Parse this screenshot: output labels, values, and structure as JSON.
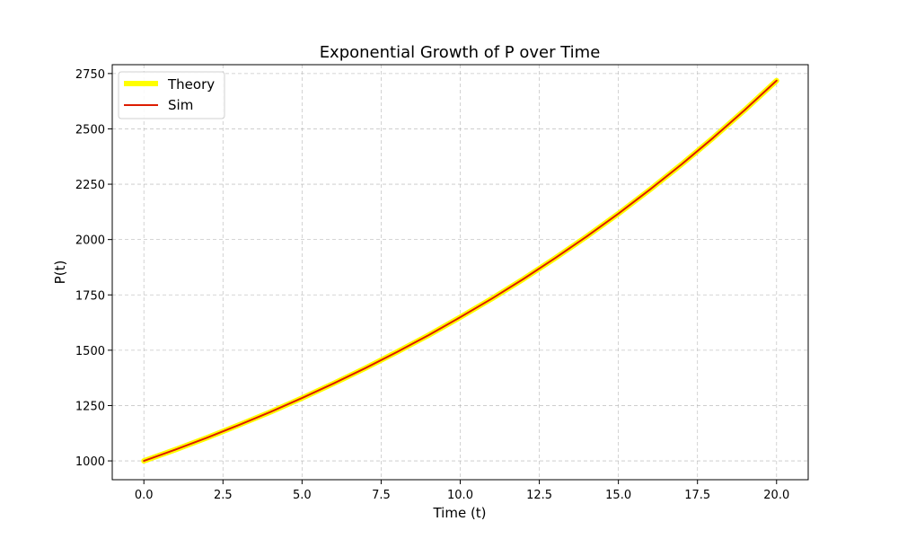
{
  "chart_data": {
    "type": "line",
    "title": "Exponential Growth of P over Time",
    "xlabel": "Time (t)",
    "ylabel": "P(t)",
    "xlim": [
      -1,
      21
    ],
    "ylim": [
      915,
      2790
    ],
    "xticks": [
      0.0,
      2.5,
      5.0,
      7.5,
      10.0,
      12.5,
      15.0,
      17.5,
      20.0
    ],
    "xtick_labels": [
      "0.0",
      "2.5",
      "5.0",
      "7.5",
      "10.0",
      "12.5",
      "15.0",
      "17.5",
      "20.0"
    ],
    "yticks": [
      1000,
      1250,
      1500,
      1750,
      2000,
      2250,
      2500,
      2750
    ],
    "ytick_labels": [
      "1000",
      "1250",
      "1500",
      "1750",
      "2000",
      "2250",
      "2500",
      "2750"
    ],
    "grid": true,
    "legend_position": "top-left",
    "x": [
      0,
      1,
      2,
      3,
      4,
      5,
      6,
      7,
      8,
      9,
      10,
      11,
      12,
      13,
      14,
      15,
      16,
      17,
      18,
      19,
      20
    ],
    "series": [
      {
        "name": "Theory",
        "color": "#ffff00",
        "values": [
          1000,
          1051,
          1105,
          1162,
          1221,
          1284,
          1350,
          1419,
          1492,
          1568,
          1649,
          1733,
          1822,
          1916,
          2014,
          2117,
          2226,
          2340,
          2460,
          2586,
          2718
        ]
      },
      {
        "name": "Sim",
        "color": "#dd1c00",
        "values": [
          1000,
          1051,
          1105,
          1162,
          1221,
          1284,
          1350,
          1419,
          1492,
          1568,
          1649,
          1733,
          1822,
          1916,
          2014,
          2117,
          2226,
          2340,
          2460,
          2586,
          2718
        ]
      }
    ]
  }
}
